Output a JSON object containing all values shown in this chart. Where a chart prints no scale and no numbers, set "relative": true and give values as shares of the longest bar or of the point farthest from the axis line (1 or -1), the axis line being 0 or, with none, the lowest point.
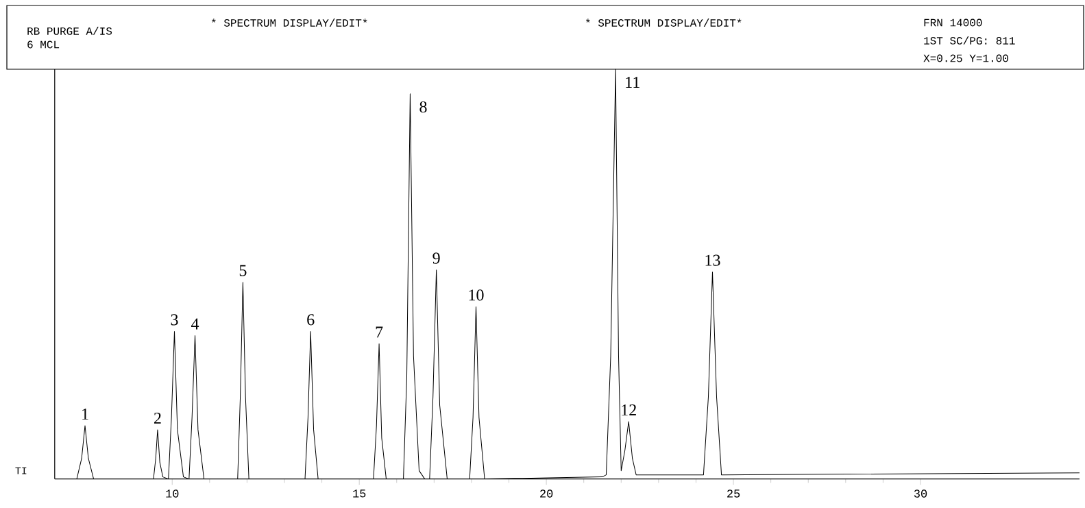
{
  "chart_data": {
    "type": "line",
    "title": "RB PURGE A/IS",
    "subtitle": "6 MCL",
    "ylabel": "TI",
    "relative": true,
    "xlim": [
      6.86,
      34.25
    ],
    "xticks": [
      10,
      15,
      20,
      25,
      30
    ],
    "annotations": [
      "* SPECTRUM DISPLAY/EDIT*",
      "* SPECTRUM DISPLAY/EDIT*",
      "FRN 14000",
      "1ST SC/PG: 811",
      "X=0.25  Y=1.00",
      {
        "text": "1",
        "x": 7.67,
        "y": 0.13
      },
      {
        "text": "2",
        "x": 9.61,
        "y": 0.12
      },
      {
        "text": "3",
        "x": 10.06,
        "y": 0.36
      },
      {
        "text": "4",
        "x": 10.61,
        "y": 0.35
      },
      {
        "text": "5",
        "x": 11.89,
        "y": 0.48
      },
      {
        "text": "6",
        "x": 13.7,
        "y": 0.36
      },
      {
        "text": "7",
        "x": 15.53,
        "y": 0.33
      },
      {
        "text": "8",
        "x": 16.36,
        "y": 0.94
      },
      {
        "text": "9",
        "x": 17.06,
        "y": 0.51
      },
      {
        "text": "10",
        "x": 18.12,
        "y": 0.42
      },
      {
        "text": "11",
        "x": 21.85,
        "y": 1.0
      },
      {
        "text": "12",
        "x": 22.2,
        "y": 0.14
      },
      {
        "text": "13",
        "x": 24.44,
        "y": 0.505
      }
    ],
    "series": [
      {
        "color": "#000000",
        "x": [
          6.86,
          7.45,
          7.58,
          7.67,
          7.76,
          7.9,
          9.5,
          9.56,
          9.61,
          9.67,
          9.75,
          9.9,
          9.98,
          10.06,
          10.14,
          10.3,
          10.45,
          10.53,
          10.61,
          10.69,
          10.85,
          11.75,
          11.82,
          11.89,
          11.96,
          12.05,
          13.55,
          13.63,
          13.7,
          13.78,
          13.9,
          15.38,
          15.46,
          15.53,
          15.6,
          15.72,
          16.18,
          16.27,
          16.36,
          16.45,
          16.6,
          16.75,
          16.88,
          16.97,
          17.06,
          17.15,
          17.35,
          17.95,
          18.04,
          18.12,
          18.2,
          18.35,
          21.5,
          21.6,
          21.72,
          21.85,
          21.93,
          22.0,
          22.1,
          22.2,
          22.3,
          22.4,
          24.2,
          24.33,
          24.44,
          24.55,
          24.68,
          34.25
        ],
        "values": [
          0,
          0,
          0.05,
          0.13,
          0.05,
          0,
          0,
          0.05,
          0.12,
          0.04,
          0.005,
          0,
          0.15,
          0.36,
          0.12,
          0.005,
          0,
          0.15,
          0.35,
          0.12,
          0,
          0,
          0.2,
          0.48,
          0.2,
          0,
          0,
          0.15,
          0.36,
          0.12,
          0,
          0,
          0.13,
          0.33,
          0.1,
          0,
          0,
          0.25,
          0.94,
          0.3,
          0.02,
          0,
          0,
          0.2,
          0.51,
          0.18,
          0,
          0,
          0.15,
          0.42,
          0.15,
          0,
          0.005,
          0.01,
          0.3,
          1.0,
          0.3,
          0.02,
          0.07,
          0.14,
          0.05,
          0.01,
          0.01,
          0.2,
          0.505,
          0.2,
          0.01,
          0.015
        ]
      }
    ]
  }
}
